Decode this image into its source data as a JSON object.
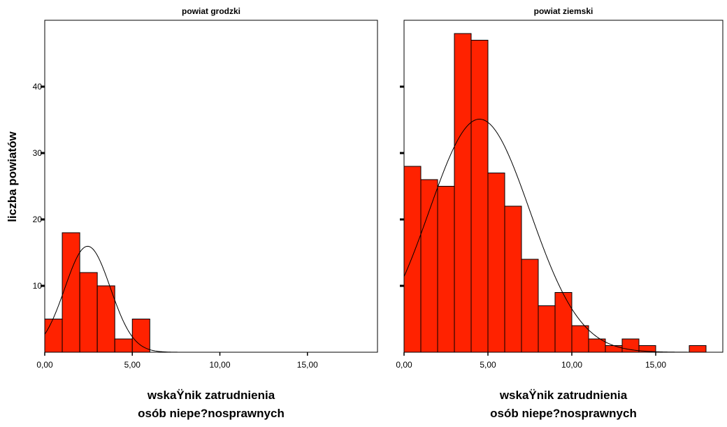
{
  "chart_data": {
    "type": "histogram",
    "ylabel": "liczba powiatów",
    "bar_color": "#ff2200",
    "bar_edge_color": "#000000",
    "curve_color": "#000000",
    "bin_width": 1.0,
    "xlim": [
      0,
      19
    ],
    "ylim": [
      0,
      50
    ],
    "x_ticks": [
      {
        "value": 0,
        "label": "0,00"
      },
      {
        "value": 5,
        "label": "5,00"
      },
      {
        "value": 10,
        "label": "10,00"
      },
      {
        "value": 15,
        "label": "15,00"
      }
    ],
    "y_ticks": [
      {
        "value": 10,
        "label": "10"
      },
      {
        "value": 20,
        "label": "20"
      },
      {
        "value": 30,
        "label": "30"
      },
      {
        "value": 40,
        "label": "40"
      }
    ],
    "panels": [
      {
        "title": "powiat grodzki",
        "xlabel_line1": "wskaŸnik zatrudnienia",
        "xlabel_line2": "osób niepe?nosprawnych",
        "bins": [
          {
            "x0": 0,
            "count": 5
          },
          {
            "x0": 1,
            "count": 18
          },
          {
            "x0": 2,
            "count": 12
          },
          {
            "x0": 3,
            "count": 10
          },
          {
            "x0": 4,
            "count": 2
          },
          {
            "x0": 5,
            "count": 5
          }
        ],
        "normal_curve": {
          "mean": 2.45,
          "sd": 1.3,
          "n": 52
        }
      },
      {
        "title": "powiat ziemski",
        "xlabel_line1": "wskaŸnik zatrudnienia",
        "xlabel_line2": "osób niepe?nosprawnych",
        "bins": [
          {
            "x0": 0,
            "count": 28
          },
          {
            "x0": 1,
            "count": 26
          },
          {
            "x0": 2,
            "count": 25
          },
          {
            "x0": 3,
            "count": 48
          },
          {
            "x0": 4,
            "count": 47
          },
          {
            "x0": 5,
            "count": 27
          },
          {
            "x0": 6,
            "count": 22
          },
          {
            "x0": 7,
            "count": 14
          },
          {
            "x0": 8,
            "count": 7
          },
          {
            "x0": 9,
            "count": 9
          },
          {
            "x0": 10,
            "count": 4
          },
          {
            "x0": 11,
            "count": 2
          },
          {
            "x0": 12,
            "count": 1
          },
          {
            "x0": 13,
            "count": 2
          },
          {
            "x0": 14,
            "count": 1
          },
          {
            "x0": 17,
            "count": 1
          }
        ],
        "normal_curve": {
          "mean": 4.5,
          "sd": 3.0,
          "n": 264
        }
      }
    ]
  }
}
